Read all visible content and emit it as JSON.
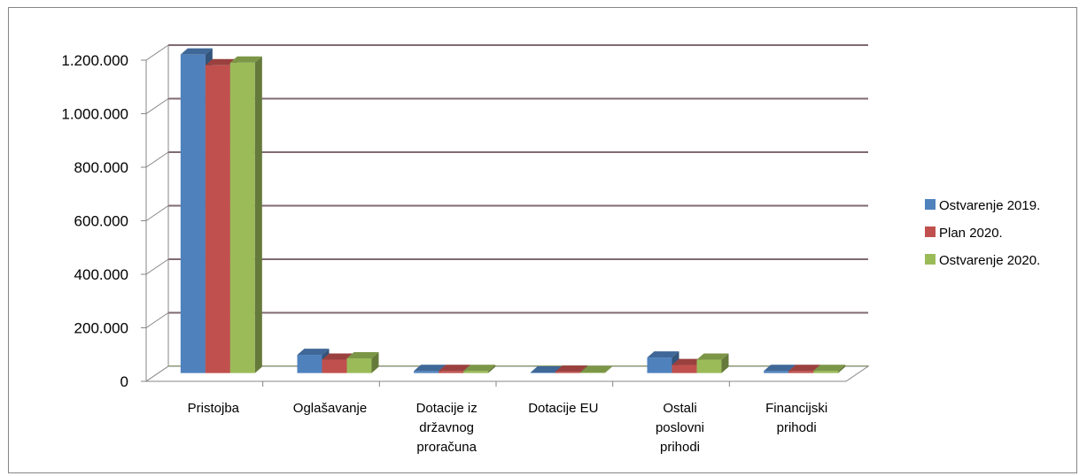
{
  "chart_data": {
    "type": "bar",
    "style": "3d-clustered-column",
    "categories": [
      [
        "Pristojba"
      ],
      [
        "Oglašavanje"
      ],
      [
        "Dotacije iz",
        "državnog",
        "proračuna"
      ],
      [
        "Dotacije EU"
      ],
      [
        "Ostali",
        "poslovni",
        "prihodi"
      ],
      [
        "Financijski",
        "prihodi"
      ]
    ],
    "series": [
      {
        "name": "Ostvarenje  2019.",
        "color": "#4F81BD",
        "values": [
          1190000,
          68000,
          8000,
          2000,
          58000,
          8000
        ]
      },
      {
        "name": "Plan 2020.",
        "color": "#C0504D",
        "values": [
          1150000,
          50000,
          8000,
          5000,
          30000,
          8000
        ]
      },
      {
        "name": "Ostvarenje 2020.",
        "color": "#9BBB59",
        "values": [
          1160000,
          55000,
          8000,
          2000,
          50000,
          8000
        ]
      }
    ],
    "yticks": [
      "0",
      "200.000",
      "400.000",
      "600.000",
      "800.000",
      "1.000.000",
      "1.200.000"
    ],
    "ylim": [
      0,
      1200000
    ],
    "grid": true,
    "legend": "right"
  }
}
